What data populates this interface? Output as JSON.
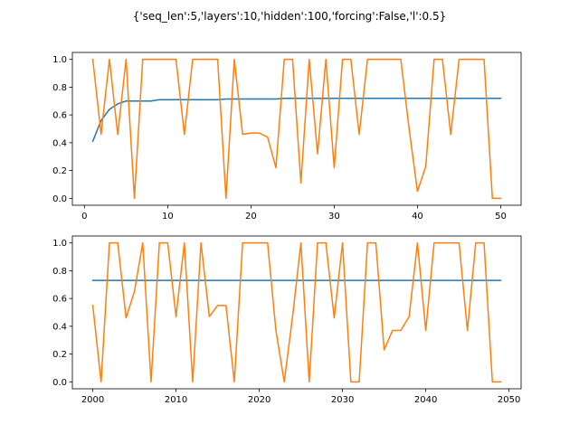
{
  "figure_title": "{'seq_len':5,'layers':10,'hidden':100,'forcing':False,'l':0.5}",
  "colors": {
    "series_0": "#1f77b4",
    "series_1": "#ff7f0e"
  },
  "chart_data": [
    {
      "type": "line",
      "xlim": [
        -1.45,
        52.45
      ],
      "ylim": [
        -0.05,
        1.05
      ],
      "xticks": [
        0,
        10,
        20,
        30,
        40,
        50
      ],
      "yticks": [
        0.0,
        0.2,
        0.4,
        0.6,
        0.8,
        1.0
      ],
      "xtick_labels": [
        "0",
        "10",
        "20",
        "30",
        "40",
        "50"
      ],
      "ytick_labels": [
        "0.0",
        "0.2",
        "0.4",
        "0.6",
        "0.8",
        "1.0"
      ],
      "grid": false,
      "x": [
        1,
        2,
        3,
        4,
        5,
        6,
        7,
        8,
        9,
        10,
        11,
        12,
        13,
        14,
        15,
        16,
        17,
        18,
        19,
        20,
        21,
        22,
        23,
        24,
        25,
        26,
        27,
        28,
        29,
        30,
        31,
        32,
        33,
        34,
        35,
        36,
        37,
        38,
        39,
        40,
        41,
        42,
        43,
        44,
        45,
        46,
        47,
        48,
        49,
        50
      ],
      "series": [
        {
          "color": "#1f77b4",
          "values": [
            0.41,
            0.56,
            0.64,
            0.68,
            0.7,
            0.7,
            0.7,
            0.7,
            0.71,
            0.71,
            0.71,
            0.71,
            0.71,
            0.71,
            0.71,
            0.71,
            0.715,
            0.715,
            0.715,
            0.715,
            0.715,
            0.715,
            0.715,
            0.72,
            0.72,
            0.72,
            0.72,
            0.72,
            0.72,
            0.72,
            0.72,
            0.72,
            0.72,
            0.72,
            0.72,
            0.72,
            0.72,
            0.72,
            0.72,
            0.72,
            0.72,
            0.72,
            0.72,
            0.72,
            0.72,
            0.72,
            0.72,
            0.72,
            0.72,
            0.72
          ]
        },
        {
          "color": "#ff7f0e",
          "values": [
            1.0,
            0.46,
            1.0,
            0.46,
            1.0,
            0.0,
            1.0,
            1.0,
            1.0,
            1.0,
            1.0,
            0.46,
            1.0,
            1.0,
            1.0,
            1.0,
            0.0,
            1.0,
            0.46,
            0.47,
            0.47,
            0.44,
            0.22,
            1.0,
            1.0,
            0.11,
            1.0,
            0.32,
            1.0,
            0.22,
            1.0,
            1.0,
            0.46,
            1.0,
            1.0,
            1.0,
            1.0,
            1.0,
            0.5,
            0.05,
            0.23,
            1.0,
            1.0,
            0.46,
            1.0,
            1.0,
            1.0,
            1.0,
            0.0,
            0.0
          ]
        }
      ]
    },
    {
      "type": "line",
      "xlim": [
        1997.55,
        2051.45
      ],
      "ylim": [
        -0.05,
        1.05
      ],
      "xticks": [
        2000,
        2010,
        2020,
        2030,
        2040,
        2050
      ],
      "yticks": [
        0.0,
        0.2,
        0.4,
        0.6,
        0.8,
        1.0
      ],
      "xtick_labels": [
        "2000",
        "2010",
        "2020",
        "2030",
        "2040",
        "2050"
      ],
      "ytick_labels": [
        "0.0",
        "0.2",
        "0.4",
        "0.6",
        "0.8",
        "1.0"
      ],
      "grid": false,
      "x": [
        2000,
        2001,
        2002,
        2003,
        2004,
        2005,
        2006,
        2007,
        2008,
        2009,
        2010,
        2011,
        2012,
        2013,
        2014,
        2015,
        2016,
        2017,
        2018,
        2019,
        2020,
        2021,
        2022,
        2023,
        2024,
        2025,
        2026,
        2027,
        2028,
        2029,
        2030,
        2031,
        2032,
        2033,
        2034,
        2035,
        2036,
        2037,
        2038,
        2039,
        2040,
        2041,
        2042,
        2043,
        2044,
        2045,
        2046,
        2047,
        2048,
        2049
      ],
      "series": [
        {
          "color": "#1f77b4",
          "values": [
            0.73,
            0.73,
            0.73,
            0.73,
            0.73,
            0.73,
            0.73,
            0.73,
            0.73,
            0.73,
            0.73,
            0.73,
            0.73,
            0.73,
            0.73,
            0.73,
            0.73,
            0.73,
            0.73,
            0.73,
            0.73,
            0.73,
            0.73,
            0.73,
            0.73,
            0.73,
            0.73,
            0.73,
            0.73,
            0.73,
            0.73,
            0.73,
            0.73,
            0.73,
            0.73,
            0.73,
            0.73,
            0.73,
            0.73,
            0.73,
            0.73,
            0.73,
            0.73,
            0.73,
            0.73,
            0.73,
            0.73,
            0.73,
            0.73,
            0.73
          ]
        },
        {
          "color": "#ff7f0e",
          "values": [
            0.55,
            0.0,
            1.0,
            1.0,
            0.46,
            0.65,
            1.0,
            0.0,
            1.0,
            1.0,
            0.47,
            1.0,
            0.0,
            1.0,
            0.47,
            0.55,
            0.55,
            0.0,
            1.0,
            1.0,
            1.0,
            1.0,
            0.37,
            0.0,
            0.47,
            1.0,
            0.0,
            1.0,
            1.0,
            0.46,
            1.0,
            0.0,
            0.0,
            1.0,
            1.0,
            0.23,
            0.37,
            0.37,
            0.47,
            1.0,
            0.37,
            1.0,
            1.0,
            1.0,
            1.0,
            0.37,
            1.0,
            1.0,
            0.0,
            0.0
          ]
        }
      ]
    }
  ]
}
